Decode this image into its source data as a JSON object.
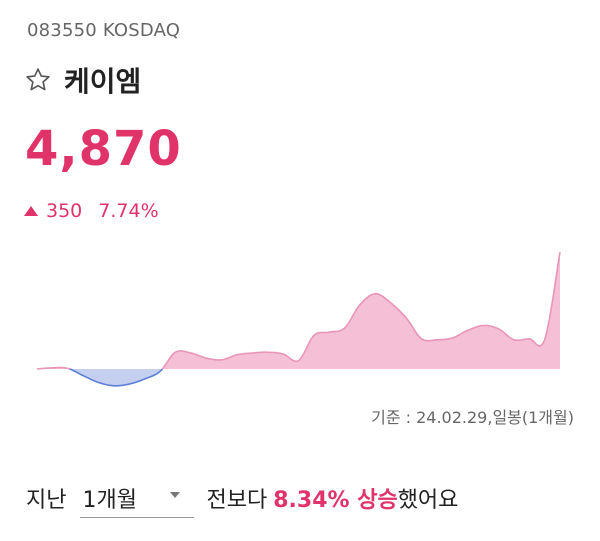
{
  "ticker": {
    "code": "083550",
    "market": "KOSDAQ"
  },
  "stock": {
    "name": "케이엠",
    "price": "4,870",
    "change_amount": "350",
    "change_percent": "7.74%",
    "direction": "up",
    "up_color": "#e0336a",
    "down_color": "#5b7fd6"
  },
  "chart_data": {
    "type": "area",
    "base_value": 0,
    "values": [
      0,
      0.6,
      0.3,
      -3.4,
      -6.9,
      -8.6,
      -7.7,
      -5.1,
      -1.2,
      8.6,
      8.2,
      5.6,
      4.7,
      7.3,
      8.2,
      8.6,
      7.7,
      4.3,
      17.2,
      18.9,
      21.0,
      33.0,
      38.6,
      33.9,
      26.2,
      15.5,
      15.0,
      15.9,
      19.8,
      22.3,
      20.6,
      15.0,
      15.5,
      15.0,
      60.0
    ],
    "up_color": "#f5bfd6",
    "up_line_color": "#e895b8",
    "down_color": "#c5cff0",
    "down_line_color": "#5b7fd6"
  },
  "basis": "기준 : 24.02.29,일봉(1개월)",
  "summary": {
    "prefix": "지난",
    "period": "1개월",
    "middle": "전보다",
    "highlight": "8.34% 상승",
    "suffix": "했어요"
  }
}
